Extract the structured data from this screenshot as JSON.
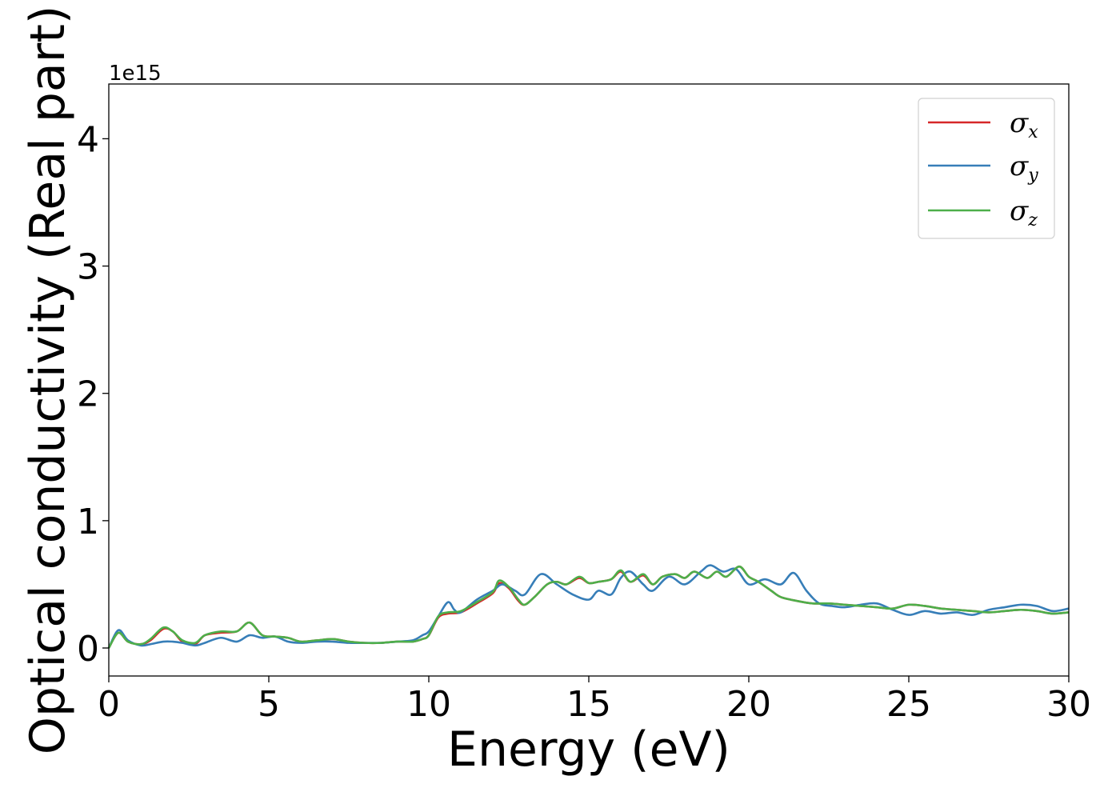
{
  "chart_data": {
    "type": "line",
    "xlabel": "Energy (eV)",
    "ylabel": "Optical conductivity (Real part)",
    "y_offset_label": "1e15",
    "xlim": [
      0,
      30
    ],
    "ylim": [
      -0.22,
      4.43
    ],
    "xticks": [
      0,
      5,
      10,
      15,
      20,
      25,
      30
    ],
    "yticks": [
      0,
      1,
      2,
      3,
      4
    ],
    "grid": false,
    "legend_position": "top-right",
    "series": [
      {
        "name": "σx",
        "symbol": "σ",
        "subscript": "x",
        "color": "#d62728",
        "x": [
          0,
          0.3,
          0.6,
          1,
          1.3,
          1.7,
          2,
          2.3,
          2.7,
          3,
          3.5,
          4,
          4.4,
          4.8,
          5.2,
          5.6,
          6,
          6.5,
          7,
          7.5,
          8,
          8.5,
          9,
          9.5,
          9.8,
          10,
          10.3,
          10.6,
          11,
          11.5,
          12,
          12.2,
          12.5,
          12.8,
          13,
          13.3,
          13.7,
          14,
          14.3,
          14.7,
          15,
          15.3,
          15.7,
          16,
          16.3,
          16.7,
          17,
          17.3,
          17.7,
          18,
          18.3,
          18.7,
          19,
          19.3,
          19.7,
          20,
          20.3,
          20.7,
          21,
          21.5,
          22,
          22.5,
          23,
          23.5,
          24,
          24.5,
          25,
          25.5,
          26,
          26.5,
          27,
          27.5,
          28,
          28.5,
          29,
          29.5,
          30
        ],
        "y": [
          0.0,
          0.12,
          0.05,
          0.03,
          0.06,
          0.15,
          0.13,
          0.05,
          0.03,
          0.1,
          0.12,
          0.13,
          0.2,
          0.1,
          0.09,
          0.08,
          0.05,
          0.06,
          0.07,
          0.05,
          0.04,
          0.04,
          0.05,
          0.05,
          0.07,
          0.1,
          0.24,
          0.27,
          0.28,
          0.35,
          0.43,
          0.51,
          0.47,
          0.37,
          0.34,
          0.4,
          0.5,
          0.52,
          0.5,
          0.55,
          0.51,
          0.52,
          0.54,
          0.6,
          0.52,
          0.57,
          0.5,
          0.56,
          0.58,
          0.55,
          0.6,
          0.55,
          0.6,
          0.56,
          0.64,
          0.56,
          0.52,
          0.45,
          0.4,
          0.37,
          0.35,
          0.35,
          0.34,
          0.33,
          0.32,
          0.31,
          0.34,
          0.33,
          0.31,
          0.3,
          0.29,
          0.28,
          0.29,
          0.3,
          0.29,
          0.27,
          0.28
        ]
      },
      {
        "name": "σy",
        "symbol": "σ",
        "subscript": "y",
        "color": "#377eb8",
        "x": [
          0,
          0.3,
          0.6,
          1,
          1.3,
          1.7,
          2,
          2.3,
          2.7,
          3,
          3.5,
          4,
          4.4,
          4.8,
          5.2,
          5.6,
          6,
          6.5,
          7,
          7.5,
          8,
          8.5,
          9,
          9.5,
          9.8,
          10,
          10.3,
          10.6,
          10.8,
          11,
          11.5,
          12,
          12.3,
          12.7,
          13,
          13.5,
          14,
          14.5,
          15,
          15.3,
          15.7,
          16,
          16.3,
          16.7,
          17,
          17.5,
          18,
          18.5,
          18.8,
          19.2,
          19.6,
          20,
          20.5,
          21,
          21.4,
          21.8,
          22.2,
          22.6,
          23,
          23.5,
          24,
          24.5,
          25,
          25.5,
          26,
          26.5,
          27,
          27.5,
          28,
          28.5,
          29,
          29.5,
          30
        ],
        "y": [
          0.0,
          0.14,
          0.06,
          0.02,
          0.03,
          0.05,
          0.05,
          0.04,
          0.02,
          0.04,
          0.08,
          0.05,
          0.1,
          0.08,
          0.09,
          0.05,
          0.04,
          0.05,
          0.05,
          0.04,
          0.04,
          0.04,
          0.05,
          0.06,
          0.1,
          0.13,
          0.25,
          0.36,
          0.3,
          0.28,
          0.38,
          0.45,
          0.5,
          0.45,
          0.42,
          0.58,
          0.5,
          0.42,
          0.38,
          0.45,
          0.42,
          0.55,
          0.6,
          0.5,
          0.45,
          0.56,
          0.5,
          0.6,
          0.65,
          0.6,
          0.62,
          0.5,
          0.54,
          0.5,
          0.59,
          0.45,
          0.35,
          0.33,
          0.32,
          0.34,
          0.35,
          0.3,
          0.26,
          0.29,
          0.27,
          0.28,
          0.26,
          0.3,
          0.32,
          0.34,
          0.33,
          0.29,
          0.31
        ]
      },
      {
        "name": "σz",
        "symbol": "σ",
        "subscript": "z",
        "color": "#4daf4a",
        "x": [
          0,
          0.3,
          0.6,
          1,
          1.3,
          1.7,
          2,
          2.3,
          2.7,
          3,
          3.5,
          4,
          4.4,
          4.8,
          5.2,
          5.6,
          6,
          6.5,
          7,
          7.5,
          8,
          8.5,
          9,
          9.5,
          9.8,
          10,
          10.3,
          10.6,
          11,
          11.5,
          12,
          12.2,
          12.5,
          12.8,
          13,
          13.3,
          13.7,
          14,
          14.3,
          14.7,
          15,
          15.3,
          15.7,
          16,
          16.3,
          16.7,
          17,
          17.3,
          17.7,
          18,
          18.3,
          18.7,
          19,
          19.3,
          19.7,
          20,
          20.3,
          20.7,
          21,
          21.5,
          22,
          22.5,
          23,
          23.5,
          24,
          24.5,
          25,
          25.5,
          26,
          26.5,
          27,
          27.5,
          28,
          28.5,
          29,
          29.5,
          30
        ],
        "y": [
          0.0,
          0.12,
          0.05,
          0.03,
          0.07,
          0.16,
          0.13,
          0.06,
          0.04,
          0.1,
          0.13,
          0.13,
          0.2,
          0.1,
          0.09,
          0.08,
          0.05,
          0.06,
          0.07,
          0.05,
          0.04,
          0.04,
          0.05,
          0.05,
          0.07,
          0.1,
          0.25,
          0.28,
          0.29,
          0.36,
          0.44,
          0.53,
          0.48,
          0.38,
          0.34,
          0.4,
          0.5,
          0.52,
          0.5,
          0.56,
          0.51,
          0.52,
          0.54,
          0.61,
          0.52,
          0.58,
          0.5,
          0.56,
          0.58,
          0.55,
          0.6,
          0.55,
          0.6,
          0.56,
          0.64,
          0.56,
          0.52,
          0.45,
          0.4,
          0.37,
          0.35,
          0.35,
          0.34,
          0.33,
          0.32,
          0.31,
          0.34,
          0.33,
          0.31,
          0.3,
          0.29,
          0.28,
          0.29,
          0.3,
          0.29,
          0.27,
          0.28
        ]
      }
    ]
  }
}
